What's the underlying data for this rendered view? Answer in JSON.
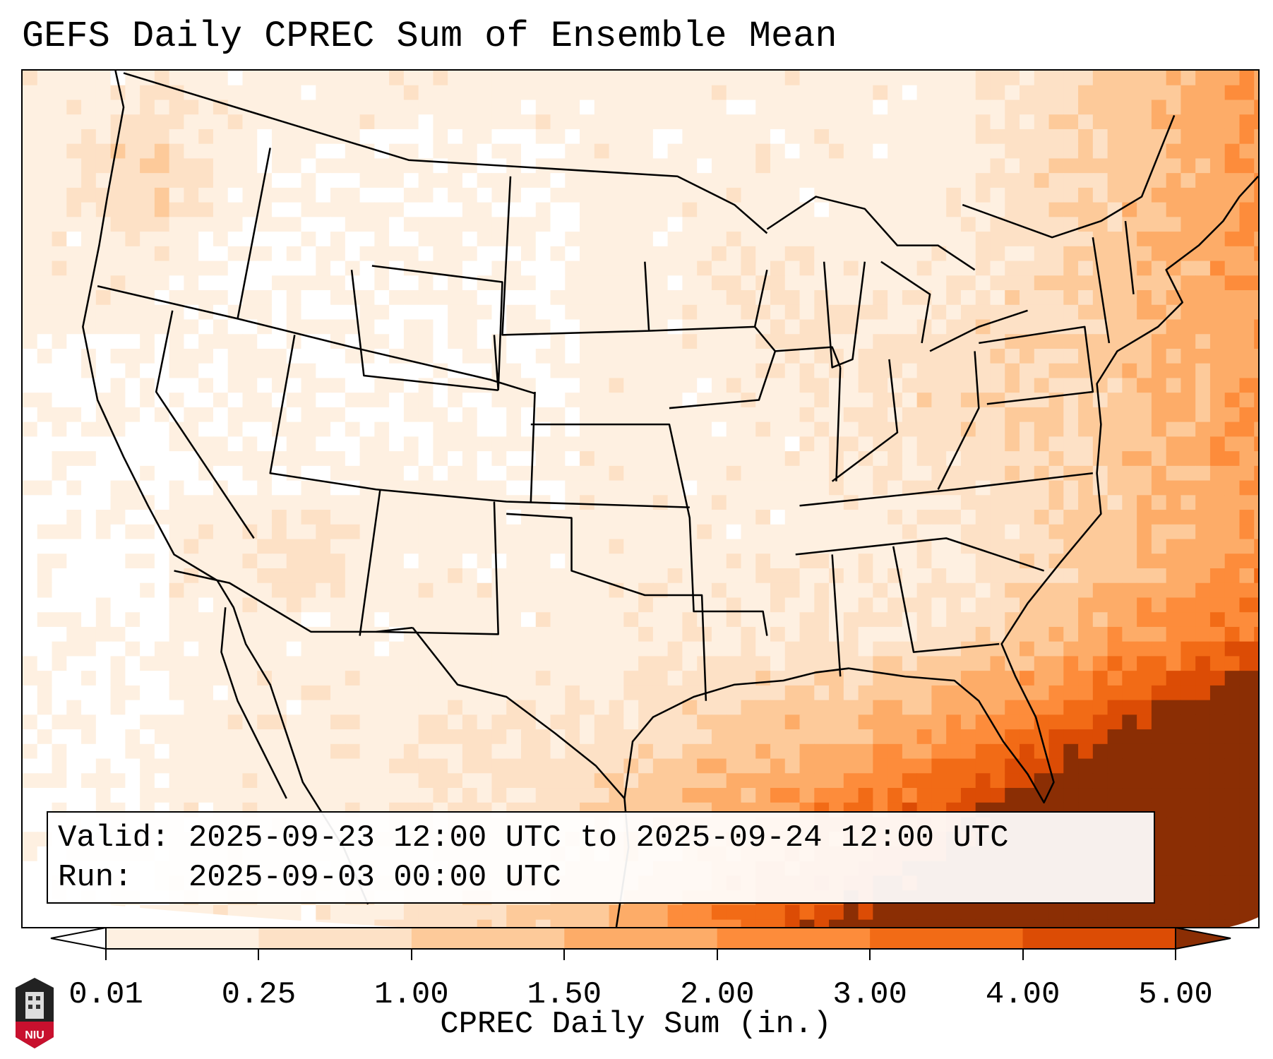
{
  "title": "GEFS Daily CPREC Sum of Ensemble Mean",
  "info": {
    "valid_line": "Valid: 2025-09-23 12:00 UTC to 2025-09-24 12:00 UTC",
    "run_line": "Run:   2025-09-03 00:00 UTC"
  },
  "colorbar": {
    "label": "CPREC Daily Sum (in.)",
    "ticks": [
      "0.01",
      "0.25",
      "1.00",
      "1.50",
      "2.00",
      "3.00",
      "4.00",
      "5.00"
    ],
    "colors": [
      "#fef0e1",
      "#fde1c6",
      "#fdca9a",
      "#fdac68",
      "#fd8c3b",
      "#f26b16",
      "#dc4c05"
    ],
    "under_color": "#ffffff",
    "over_color": "#8b2e04"
  },
  "logo": {
    "text": "NIU"
  }
}
